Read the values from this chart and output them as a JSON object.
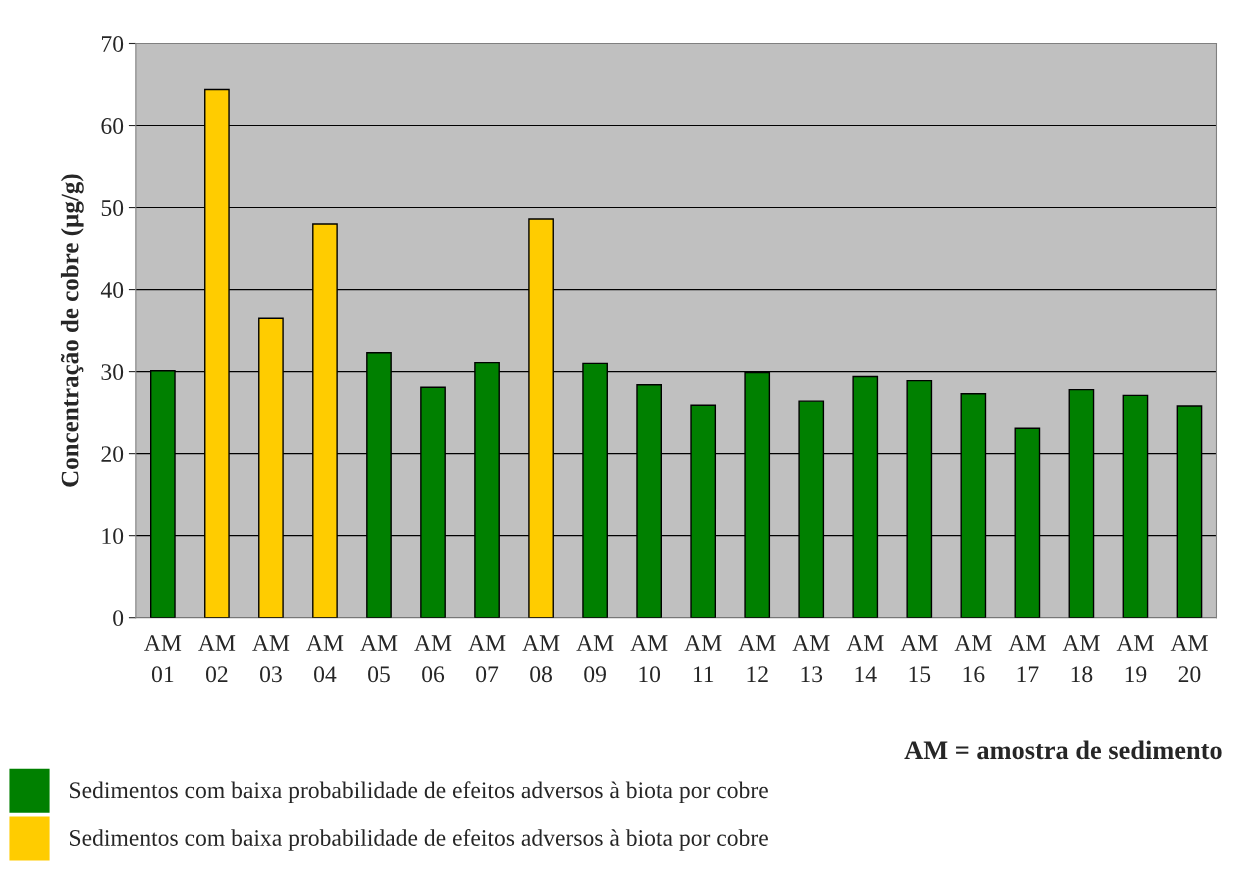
{
  "chart_data": {
    "type": "bar",
    "categories": [
      "AM\n01",
      "AM\n02",
      "AM\n03",
      "AM\n04",
      "AM\n05",
      "AM\n06",
      "AM\n07",
      "AM\n08",
      "AM\n09",
      "AM\n10",
      "AM\n11",
      "AM\n12",
      "AM\n13",
      "AM\n14",
      "AM\n15",
      "AM\n16",
      "AM\n17",
      "AM\n18",
      "AM\n19",
      "AM\n20"
    ],
    "series": [
      {
        "name": "Sedimentos com baixa probabilidade de efeitos adversos à biota por cobre",
        "color": "#008000",
        "values": [
          30.1,
          null,
          null,
          null,
          32.3,
          28.1,
          31.1,
          null,
          31.0,
          28.4,
          25.9,
          29.9,
          26.4,
          29.4,
          28.9,
          27.3,
          23.1,
          27.8,
          27.1,
          25.8
        ]
      },
      {
        "name": "Sedimentos com baixa probabilidade de efeitos adversos à biota por cobre",
        "color": "#ffcc00",
        "values": [
          null,
          64.4,
          36.5,
          48.0,
          null,
          null,
          null,
          48.6,
          null,
          null,
          null,
          null,
          null,
          null,
          null,
          null,
          null,
          null,
          null,
          null
        ]
      }
    ],
    "ylabel": "Concentração de cobre (µg/g)",
    "annotations": [
      "AM = amostra de sedimento"
    ],
    "ylim": [
      0,
      70
    ],
    "yticks": [
      0,
      10,
      20,
      30,
      40,
      50,
      60,
      70
    ],
    "grid": "y",
    "legend": "bottom left"
  }
}
